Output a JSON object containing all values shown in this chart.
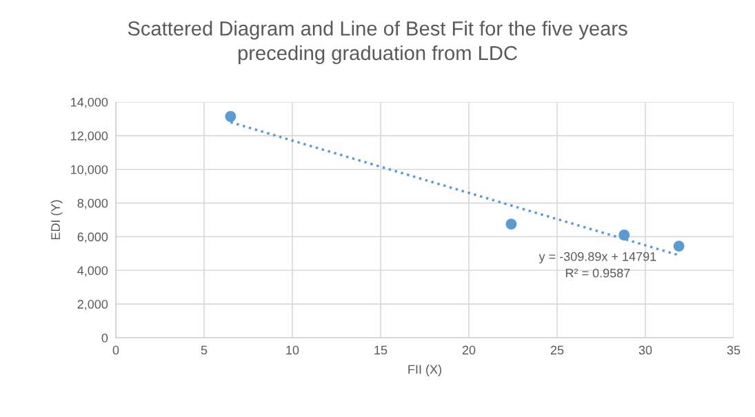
{
  "chart_data": {
    "type": "scatter",
    "title": "Scattered Diagram and Line of Best Fit for the five years\npreceding graduation from LDC",
    "xlabel": "FII (X)",
    "ylabel": "EDI (Y)",
    "x": [
      6.5,
      22.4,
      28.8,
      31.9
    ],
    "series": [
      {
        "color": "#5b9bd5",
        "values": [
          13140,
          6750,
          6100,
          5440
        ],
        "marker": "circle"
      },
      {
        "type": "line",
        "color": "#5b9bd5",
        "x": [
          6.5,
          31.9
        ],
        "values": [
          12800,
          4900
        ],
        "line_style": "dotted",
        "marker": "none"
      }
    ],
    "annotations": [
      "y = -309.89x + 14791",
      "R² = 0.9587"
    ],
    "xlim": [
      0,
      35
    ],
    "xticks": [
      0,
      5,
      10,
      15,
      20,
      25,
      30,
      35
    ],
    "ylim": [
      0,
      14000
    ],
    "yticks": [
      0,
      {
        "value": 2000,
        "label": "2,000"
      },
      {
        "value": 4000,
        "label": "4,000"
      },
      {
        "value": 6000,
        "label": "6,000"
      },
      {
        "value": 8000,
        "label": "8,000"
      },
      {
        "value": 10000,
        "label": "10,000"
      },
      {
        "value": 12000,
        "label": "12,000"
      },
      {
        "value": 14000,
        "label": "14,000"
      }
    ],
    "grid": true,
    "legend": false
  }
}
